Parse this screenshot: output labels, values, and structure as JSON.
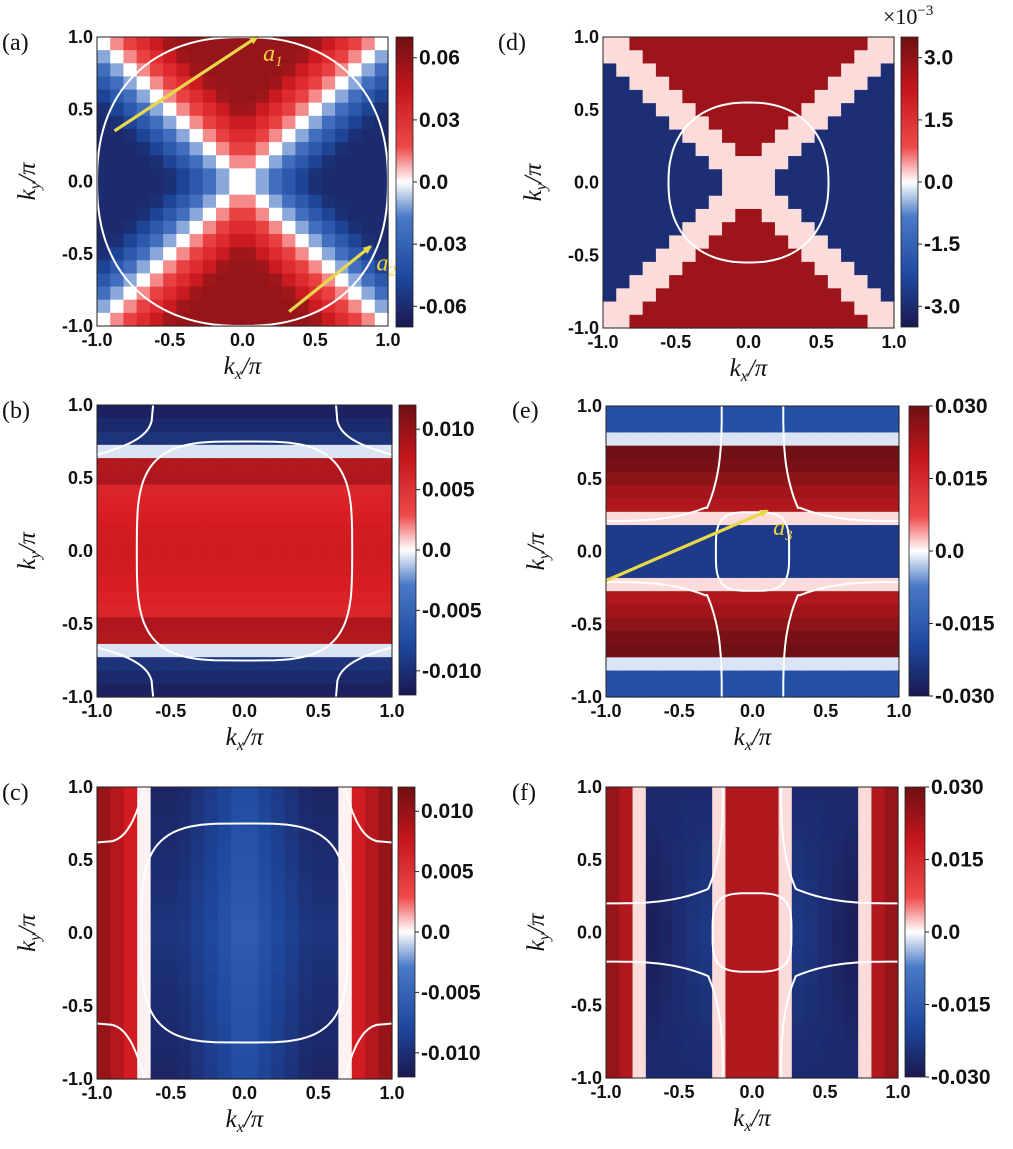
{
  "axis_labels": {
    "x_var": "k",
    "x_sub": "x",
    "y_var": "k",
    "y_sub": "y",
    "over_pi": "/π"
  },
  "colors": {
    "neg_dark": "#1d1a55",
    "neg": "#1f4ea8",
    "zero": "#ffffff",
    "pos": "#e11a22",
    "pos_dark": "#7a1116",
    "contour": "#ffffff",
    "vector": "#e8d84a"
  },
  "chart_data": [
    {
      "panel": "(a)",
      "type": "heatmap",
      "xlabel": "k_x/π",
      "ylabel": "k_y/π",
      "xlim": [
        -1.0,
        1.0
      ],
      "ylim": [
        -1.0,
        1.0
      ],
      "x_ticks": [
        "-1.0",
        "-0.5",
        "0.0",
        "0.5",
        "1.0"
      ],
      "y_ticks": [
        "-1.0",
        "-0.5",
        "0.0",
        "0.5",
        "1.0"
      ],
      "pattern": "diagonal_x",
      "colorbar": {
        "range": [
          -0.07,
          0.07
        ],
        "ticks": [
          0.06,
          0.03,
          0.0,
          -0.03,
          -0.06
        ],
        "tick_labels": [
          "0.06",
          "0.03",
          "0.0",
          "-0.03",
          "-0.06"
        ],
        "multiplier": ""
      },
      "contours": [
        {
          "shape": "circle",
          "radius": 1.0
        }
      ],
      "vectors": [
        {
          "label": "a",
          "sub": "1",
          "from": [
            -0.88,
            0.35
          ],
          "to": [
            0.1,
            1.0
          ]
        },
        {
          "label": "a",
          "sub": "2",
          "from": [
            0.32,
            -0.9
          ],
          "to": [
            0.88,
            -0.45
          ]
        }
      ]
    },
    {
      "panel": "(b)",
      "type": "heatmap",
      "xlabel": "k_x/π",
      "ylabel": "k_y/π",
      "xlim": [
        -1.0,
        1.0
      ],
      "ylim": [
        -1.0,
        1.0
      ],
      "x_ticks": [
        "-1.0",
        "-0.5",
        "0.0",
        "0.5",
        "1.0"
      ],
      "y_ticks": [
        "-1.0",
        "-0.5",
        "0.0",
        "0.5",
        "1.0"
      ],
      "pattern": "horizontal_bands",
      "colorbar": {
        "range": [
          -0.012,
          0.012
        ],
        "ticks": [
          0.01,
          0.005,
          0.0,
          -0.005,
          -0.01
        ],
        "tick_labels": [
          "0.010",
          "0.005",
          "0.0",
          "-0.005",
          "-0.010"
        ],
        "multiplier": ""
      },
      "contours": [
        {
          "shape": "rounded_square",
          "half_x": 0.73,
          "half_y": 0.75
        },
        {
          "shape": "corner_hyperbolas",
          "edge": "top_bottom",
          "inner": 0.66
        }
      ],
      "vectors": []
    },
    {
      "panel": "(c)",
      "type": "heatmap",
      "xlabel": "k_x/π",
      "ylabel": "k_y/π",
      "xlim": [
        -1.0,
        1.0
      ],
      "ylim": [
        -1.0,
        1.0
      ],
      "x_ticks": [
        "-1.0",
        "-0.5",
        "0.0",
        "0.5",
        "1.0"
      ],
      "y_ticks": [
        "-1.0",
        "-0.5",
        "0.0",
        "0.5",
        "1.0"
      ],
      "pattern": "vertical_bands",
      "colorbar": {
        "range": [
          -0.012,
          0.012
        ],
        "ticks": [
          0.01,
          0.005,
          0.0,
          -0.005,
          -0.01
        ],
        "tick_labels": [
          "0.010",
          "0.005",
          "0.0",
          "-0.005",
          "-0.010"
        ],
        "multiplier": ""
      },
      "contours": [
        {
          "shape": "rounded_square",
          "half_x": 0.7,
          "half_y": 0.75
        },
        {
          "shape": "corner_hyperbolas",
          "edge": "left_right",
          "inner": 0.68
        }
      ],
      "vectors": []
    },
    {
      "panel": "(d)",
      "type": "heatmap",
      "xlabel": "k_x/π",
      "ylabel": "k_y/π",
      "xlim": [
        -1.0,
        1.0
      ],
      "ylim": [
        -1.0,
        1.0
      ],
      "x_ticks": [
        "-1.0",
        "-0.5",
        "0.0",
        "0.5",
        "1.0"
      ],
      "y_ticks": [
        "-1.0",
        "-0.5",
        "0.0",
        "0.5",
        "1.0"
      ],
      "pattern": "checker",
      "colorbar": {
        "range": [
          -3.5,
          3.5
        ],
        "ticks": [
          3.0,
          1.5,
          0.0,
          -1.5,
          -3.0
        ],
        "tick_labels": [
          "3.0",
          "1.5",
          "0.0",
          "-1.5",
          "-3.0"
        ],
        "multiplier": "×10",
        "multiplier_exp": "−3"
      },
      "contours": [
        {
          "shape": "circle",
          "radius": 0.55
        }
      ],
      "vectors": []
    },
    {
      "panel": "(e)",
      "type": "heatmap",
      "xlabel": "k_x/π",
      "ylabel": "k_y/π",
      "xlim": [
        -1.0,
        1.0
      ],
      "ylim": [
        -1.0,
        1.0
      ],
      "x_ticks": [
        "-1.0",
        "-0.5",
        "0.0",
        "0.5",
        "1.0"
      ],
      "y_ticks": [
        "-1.0",
        "-0.5",
        "0.0",
        "0.5",
        "1.0"
      ],
      "pattern": "horizontal_multi",
      "colorbar": {
        "range": [
          -0.03,
          0.03
        ],
        "ticks": [
          0.03,
          0.015,
          0.0,
          -0.015,
          -0.03
        ],
        "tick_labels": [
          "0.030",
          "0.015",
          "0.0",
          "-0.015",
          "-0.030"
        ],
        "multiplier": ""
      },
      "contours": [
        {
          "shape": "rounded_square",
          "half_x": 0.25,
          "half_y": 0.27
        },
        {
          "shape": "cross_hyperbolas",
          "inner": 0.21
        }
      ],
      "vectors": [
        {
          "label": "a",
          "sub": "3",
          "from": [
            -1.0,
            -0.2
          ],
          "to": [
            0.1,
            0.28
          ]
        }
      ]
    },
    {
      "panel": "(f)",
      "type": "heatmap",
      "xlabel": "k_x/π",
      "ylabel": "k_y/π",
      "xlim": [
        -1.0,
        1.0
      ],
      "ylim": [
        -1.0,
        1.0
      ],
      "x_ticks": [
        "-1.0",
        "-0.5",
        "0.0",
        "0.5",
        "1.0"
      ],
      "y_ticks": [
        "-1.0",
        "-0.5",
        "0.0",
        "0.5",
        "1.0"
      ],
      "pattern": "vertical_multi",
      "colorbar": {
        "range": [
          -0.03,
          0.03
        ],
        "ticks": [
          0.03,
          0.015,
          0.0,
          -0.015,
          -0.03
        ],
        "tick_labels": [
          "0.030",
          "0.015",
          "0.0",
          "-0.015",
          "-0.030"
        ],
        "multiplier": ""
      },
      "contours": [
        {
          "shape": "rounded_square",
          "half_x": 0.27,
          "half_y": 0.27
        },
        {
          "shape": "cross_hyperbolas",
          "inner": 0.2
        }
      ],
      "vectors": []
    }
  ]
}
